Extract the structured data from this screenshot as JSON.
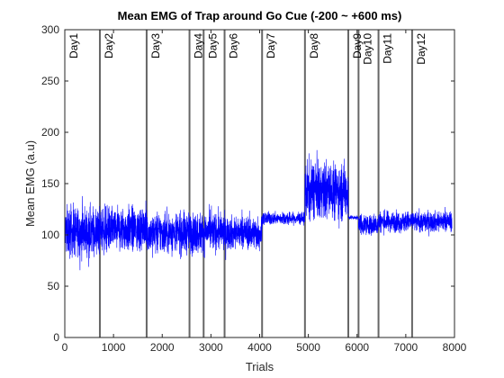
{
  "chart_data": {
    "type": "line",
    "title": "Mean EMG of Trap around Go Cue (-200 ~ +600 ms)",
    "xlabel": "Trials",
    "ylabel": "Mean EMG (a.u)",
    "xlim": [
      0,
      8000
    ],
    "ylim": [
      0,
      300
    ],
    "xticks": [
      0,
      1000,
      2000,
      3000,
      4000,
      5000,
      6000,
      7000,
      8000
    ],
    "yticks": [
      0,
      50,
      100,
      150,
      200,
      250,
      300
    ],
    "grid": false,
    "line_color": "#0000ff",
    "divider_color": "#666666",
    "day_boundaries": [
      {
        "label": "Day1",
        "x": 0
      },
      {
        "label": "Day2",
        "x": 720
      },
      {
        "label": "Day3",
        "x": 1680
      },
      {
        "label": "Day4",
        "x": 2560
      },
      {
        "label": "Day5",
        "x": 2850
      },
      {
        "label": "Day6",
        "x": 3280
      },
      {
        "label": "Day7",
        "x": 4050
      },
      {
        "label": "Day8",
        "x": 4930
      },
      {
        "label": "Day9",
        "x": 5820
      },
      {
        "label": "Day10",
        "x": 6030
      },
      {
        "label": "Day11",
        "x": 6440
      },
      {
        "label": "Day12",
        "x": 7130
      }
    ],
    "segments": [
      {
        "start": 0,
        "end": 720,
        "mean": 103,
        "spread": 12
      },
      {
        "start": 720,
        "end": 1680,
        "mean": 105,
        "spread": 11
      },
      {
        "start": 1680,
        "end": 2560,
        "mean": 102,
        "spread": 10
      },
      {
        "start": 2560,
        "end": 2850,
        "mean": 102,
        "spread": 10
      },
      {
        "start": 2850,
        "end": 3280,
        "mean": 103,
        "spread": 9
      },
      {
        "start": 3280,
        "end": 4050,
        "mean": 102,
        "spread": 8
      },
      {
        "start": 4050,
        "end": 4930,
        "mean": 116,
        "spread": 3
      },
      {
        "start": 4930,
        "end": 5820,
        "mean": 143,
        "spread": 14
      },
      {
        "start": 5820,
        "end": 6030,
        "mean": 117,
        "spread": 1
      },
      {
        "start": 6030,
        "end": 6440,
        "mean": 110,
        "spread": 5
      },
      {
        "start": 6440,
        "end": 7130,
        "mean": 113,
        "spread": 5
      },
      {
        "start": 7130,
        "end": 7950,
        "mean": 113,
        "spread": 5
      }
    ]
  }
}
